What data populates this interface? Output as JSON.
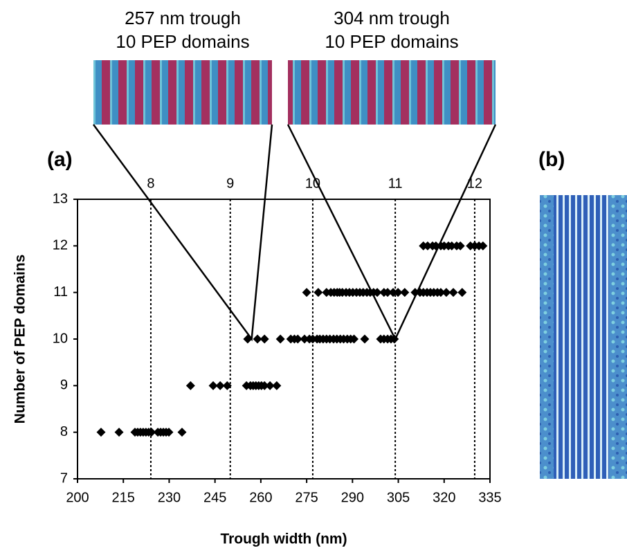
{
  "chart_data": {
    "type": "scatter",
    "panel_label": "(a)",
    "xlabel": "Trough width (nm)",
    "ylabel": "Number of PEP domains",
    "xlim": [
      200,
      335
    ],
    "ylim": [
      7,
      13
    ],
    "xticks": [
      200,
      215,
      230,
      245,
      260,
      275,
      290,
      305,
      320,
      335
    ],
    "yticks": [
      7,
      8,
      9,
      10,
      11,
      12,
      13
    ],
    "x2ticks": [
      {
        "value": 224,
        "label": "8"
      },
      {
        "value": 250,
        "label": "9"
      },
      {
        "value": 277,
        "label": "10"
      },
      {
        "value": 304,
        "label": "11"
      },
      {
        "value": 330,
        "label": "12"
      }
    ],
    "x2grid": "dotted",
    "color": "#000000",
    "marker": "diamond",
    "x": [
      207.7,
      213.6,
      218.8,
      219.7,
      220.6,
      221.5,
      222.4,
      223.3,
      224.2,
      226.3,
      227.2,
      228.1,
      229.0,
      229.9,
      234.2,
      237.0,
      244.4,
      246.7,
      249.0,
      255.3,
      256.6,
      257.5,
      258.4,
      259.3,
      260.2,
      261.2,
      263.0,
      265.2,
      255.7,
      258.9,
      261.2,
      266.4,
      269.8,
      271.0,
      272.1,
      274.3,
      275.9,
      277.0,
      278.4,
      279.3,
      280.4,
      281.5,
      282.6,
      283.8,
      284.9,
      286.0,
      287.1,
      288.3,
      289.4,
      290.5,
      294.0,
      299.2,
      300.3,
      301.5,
      302.6,
      303.7,
      275.0,
      278.8,
      281.5,
      282.9,
      284.0,
      285.0,
      285.8,
      286.7,
      287.9,
      289.0,
      290.1,
      291.3,
      292.4,
      293.5,
      294.7,
      295.8,
      296.9,
      298.1,
      300.3,
      301.5,
      303.3,
      304.9,
      307.1,
      310.5,
      312.1,
      313.2,
      314.4,
      315.5,
      316.6,
      317.8,
      318.9,
      320.7,
      323.0,
      325.9,
      313.2,
      314.6,
      316.2,
      317.3,
      318.9,
      320.0,
      321.4,
      322.5,
      324.1,
      325.3,
      328.6,
      330.0,
      331.4,
      332.7
    ],
    "values": [
      8,
      8,
      8,
      8,
      8,
      8,
      8,
      8,
      8,
      8,
      8,
      8,
      8,
      8,
      8,
      9,
      9,
      9,
      9,
      9,
      9,
      9,
      9,
      9,
      9,
      9,
      9,
      9,
      10,
      10,
      10,
      10,
      10,
      10,
      10,
      10,
      10,
      10,
      10,
      10,
      10,
      10,
      10,
      10,
      10,
      10,
      10,
      10,
      10,
      10,
      10,
      10,
      10,
      10,
      10,
      10,
      11,
      11,
      11,
      11,
      11,
      11,
      11,
      11,
      11,
      11,
      11,
      11,
      11,
      11,
      11,
      11,
      11,
      11,
      11,
      11,
      11,
      11,
      11,
      11,
      11,
      11,
      11,
      11,
      11,
      11,
      11,
      11,
      11,
      11,
      12,
      12,
      12,
      12,
      12,
      12,
      12,
      12,
      12,
      12,
      12,
      12,
      12,
      12
    ],
    "annotations": [
      {
        "text": [
          "257 nm trough",
          "10 PEP domains"
        ],
        "x": 257,
        "y": 10
      },
      {
        "text": [
          "304 nm trough",
          "10 PEP domains"
        ],
        "x": 304,
        "y": 10
      }
    ]
  },
  "panel_b": {
    "label": "(b)"
  }
}
